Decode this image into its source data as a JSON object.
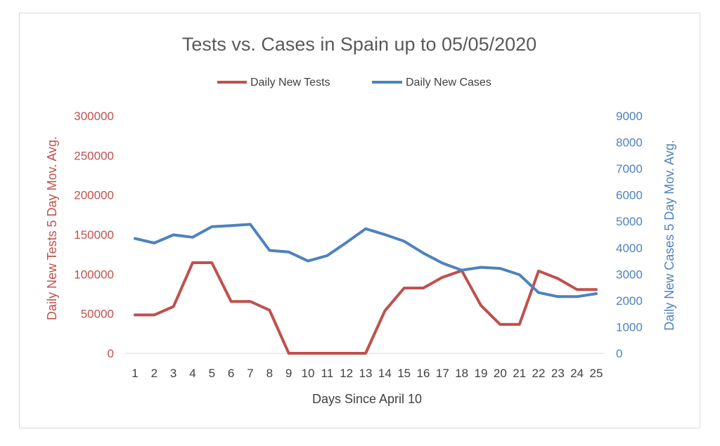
{
  "chart_data": {
    "type": "line",
    "title": "Tests vs. Cases in Spain up to 05/05/2020",
    "xlabel": "Days Since April 10",
    "ylabel_left": "Daily New Tests 5 Day Mov. Avg.",
    "ylabel_right": "Daily New Cases 5 Day Mov. Avg.",
    "categories": [
      "1",
      "2",
      "3",
      "4",
      "5",
      "6",
      "7",
      "8",
      "9",
      "10",
      "11",
      "12",
      "13",
      "14",
      "15",
      "16",
      "17",
      "18",
      "19",
      "20",
      "21",
      "22",
      "23",
      "24",
      "25"
    ],
    "ylim_left": [
      0,
      300000
    ],
    "ylim_right": [
      0,
      9000
    ],
    "yticks_left": [
      "0",
      "50000",
      "100000",
      "150000",
      "200000",
      "250000",
      "300000"
    ],
    "yticks_right": [
      "0",
      "1000",
      "2000",
      "3000",
      "4000",
      "5000",
      "6000",
      "7000",
      "8000",
      "9000"
    ],
    "legend_position": "top",
    "series": [
      {
        "name": "Daily New Tests",
        "axis": "left",
        "color": "#c0504d",
        "values": [
          48500,
          48500,
          59000,
          114500,
          114500,
          65500,
          65500,
          54500,
          0,
          0,
          0,
          0,
          0,
          53500,
          82500,
          82500,
          96000,
          104500,
          60500,
          36500,
          36500,
          104000,
          94500,
          80500,
          80500
        ]
      },
      {
        "name": "Daily New Cases",
        "axis": "right",
        "color": "#4f81bd",
        "values": [
          4350,
          4180,
          4490,
          4400,
          4800,
          4840,
          4890,
          3900,
          3840,
          3500,
          3700,
          4200,
          4720,
          4500,
          4250,
          3800,
          3420,
          3150,
          3260,
          3220,
          2980,
          2300,
          2150,
          2150,
          2260
        ]
      }
    ]
  }
}
